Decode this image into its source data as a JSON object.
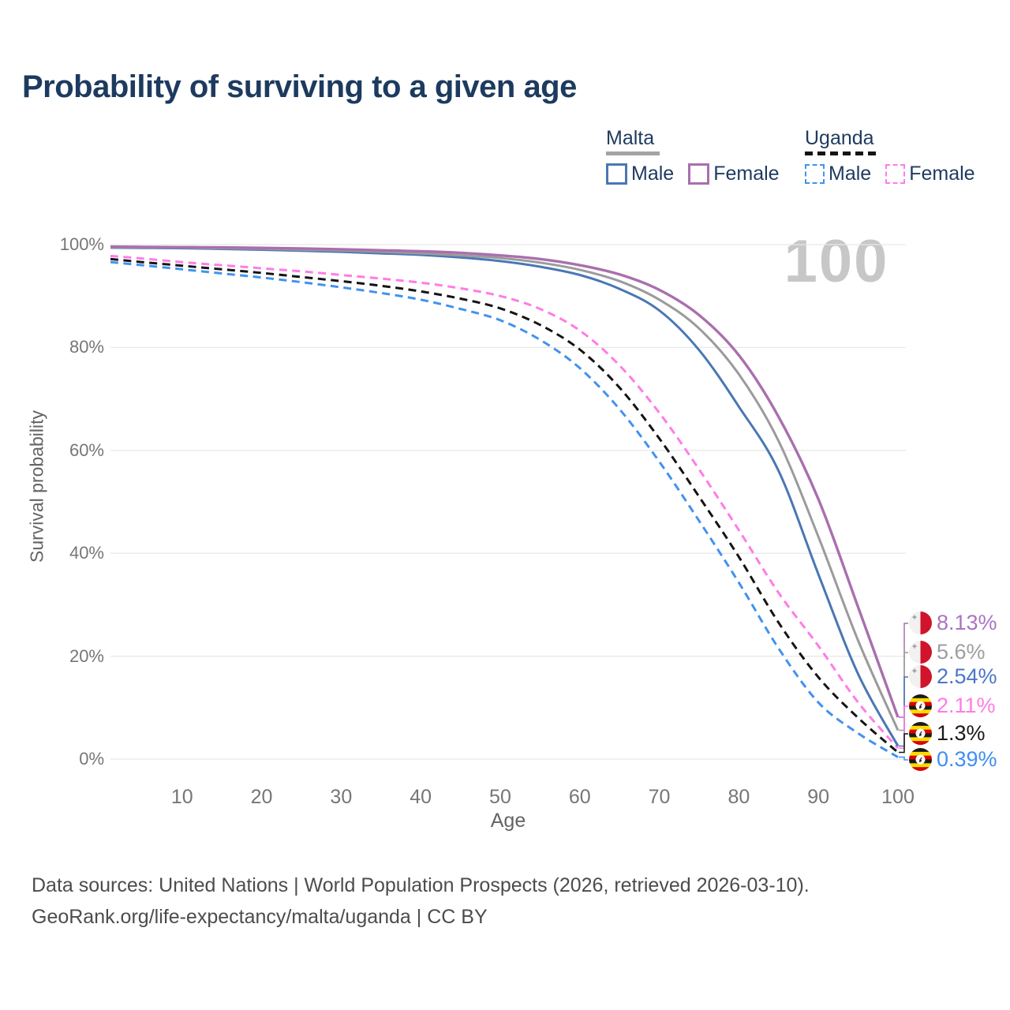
{
  "title": "Probability of surviving to a given age",
  "watermark": "100",
  "legend": {
    "groups": [
      {
        "label": "Malta",
        "line_style": "solid",
        "line_color": "#a3a3a3",
        "items": [
          {
            "label": "Male",
            "color": "#4a77b4",
            "style": "solid"
          },
          {
            "label": "Female",
            "color": "#a96fae",
            "style": "solid"
          }
        ]
      },
      {
        "label": "Uganda",
        "line_style": "dashed",
        "line_color": "#141414",
        "items": [
          {
            "label": "Male",
            "color": "#4292ef",
            "style": "dashed"
          },
          {
            "label": "Female",
            "color": "#ff7ce5",
            "style": "dashed"
          }
        ]
      }
    ]
  },
  "chart_data": {
    "type": "line",
    "title": "Probability of surviving to a given age",
    "xlabel": "Age",
    "ylabel": "Survival probability",
    "xlim": [
      1,
      101
    ],
    "ylim": [
      0,
      100
    ],
    "grid": true,
    "legend_position": "top-right",
    "x_ticks": [
      10,
      20,
      30,
      40,
      50,
      60,
      70,
      80,
      90,
      100
    ],
    "y_ticks": [
      0,
      20,
      40,
      60,
      80,
      100
    ],
    "y_tick_suffix": "%",
    "x": [
      1,
      5,
      10,
      15,
      20,
      25,
      30,
      35,
      40,
      45,
      50,
      55,
      60,
      65,
      70,
      75,
      80,
      85,
      90,
      95,
      100
    ],
    "series": [
      {
        "name": "Malta Female",
        "country": "malta",
        "color": "#a96fae",
        "label_color": "#aa74c2",
        "dash": false,
        "end_label": "8.13%",
        "values": [
          99.6,
          99.55,
          99.5,
          99.45,
          99.35,
          99.25,
          99.1,
          98.9,
          98.7,
          98.4,
          97.9,
          97.2,
          96.0,
          94.2,
          91.2,
          86.3,
          78.5,
          66.5,
          50.5,
          29.5,
          8.13
        ]
      },
      {
        "name": "Malta Both sexes",
        "country": "malta",
        "color": "#9b9b9b",
        "label_color": "#9e9e9e",
        "dash": false,
        "end_label": "5.6%",
        "values": [
          99.5,
          99.45,
          99.4,
          99.3,
          99.2,
          99.0,
          98.85,
          98.6,
          98.3,
          97.9,
          97.4,
          96.5,
          95.1,
          92.9,
          89.3,
          83.7,
          74.8,
          61.8,
          43.2,
          23.0,
          5.6
        ]
      },
      {
        "name": "Malta Male",
        "country": "malta",
        "color": "#4a77b4",
        "label_color": "#4a76c8",
        "dash": false,
        "end_label": "2.54%",
        "values": [
          99.4,
          99.35,
          99.3,
          99.15,
          99.0,
          98.8,
          98.6,
          98.3,
          98.0,
          97.5,
          96.8,
          95.7,
          94.1,
          91.4,
          87.2,
          79.5,
          68.5,
          56.0,
          35.9,
          16.5,
          2.54
        ]
      },
      {
        "name": "Uganda Female",
        "country": "uganda",
        "color": "#ff7ce5",
        "label_color": "#ff7ce5",
        "dash": true,
        "end_label": "2.11%",
        "values": [
          97.8,
          97.3,
          96.6,
          96.0,
          95.4,
          94.8,
          94.1,
          93.4,
          92.6,
          91.5,
          90.0,
          87.5,
          83.3,
          76.5,
          67.3,
          56.3,
          44.5,
          32.3,
          22.0,
          11.0,
          2.11
        ]
      },
      {
        "name": "Uganda Both sexes",
        "country": "uganda",
        "color": "#141414",
        "label_color": "#1a1a1a",
        "dash": true,
        "end_label": "1.3%",
        "values": [
          97.2,
          96.6,
          95.9,
          95.2,
          94.5,
          93.7,
          92.9,
          92.0,
          90.9,
          89.5,
          87.6,
          84.4,
          79.6,
          72.2,
          62.3,
          51.0,
          39.3,
          26.5,
          15.9,
          8.0,
          1.3
        ]
      },
      {
        "name": "Uganda Male",
        "country": "uganda",
        "color": "#4292ef",
        "label_color": "#3f8ef5",
        "dash": true,
        "end_label": "0.39%",
        "values": [
          96.6,
          96.0,
          95.2,
          94.4,
          93.6,
          92.7,
          91.7,
          90.6,
          89.3,
          87.5,
          85.3,
          81.5,
          76.0,
          68.0,
          57.8,
          46.3,
          34.3,
          21.5,
          11.0,
          5.0,
          0.39
        ]
      }
    ]
  },
  "footer": {
    "line1": "Data sources: United Nations | World Population Prospects (2026, retrieved 2026-03-10).",
    "line2": "GeoRank.org/life-expectancy/malta/uganda | CC BY"
  }
}
